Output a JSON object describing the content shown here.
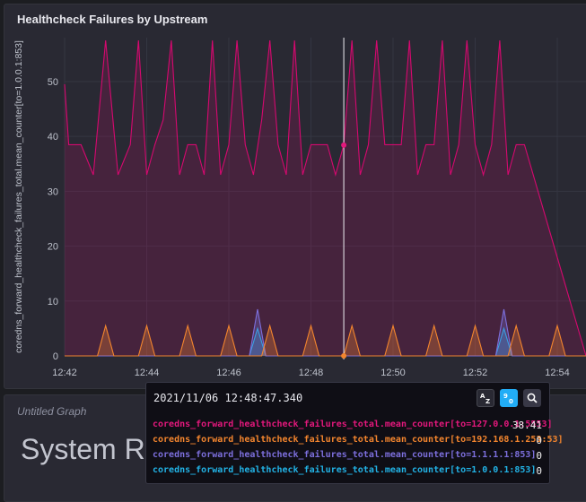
{
  "panel": {
    "title": "Healthcheck Failures by Upstream"
  },
  "chart_data": {
    "type": "area",
    "ylabel": "coredns_forward_healthcheck_failures_total.mean_counter[to=1.0.0.1:853]",
    "xlabel": "",
    "ylim": [
      0,
      58
    ],
    "yticks": [
      0,
      10,
      20,
      30,
      40,
      50
    ],
    "xlim": [
      0,
      12.7
    ],
    "xticks": [
      0,
      2,
      4,
      6,
      8,
      10,
      12
    ],
    "xtick_labels": [
      "12:42",
      "12:44",
      "12:46",
      "12:48",
      "12:50",
      "12:52",
      "12:54"
    ],
    "hover_x": 6.8,
    "series": [
      {
        "name": "coredns_forward_healthcheck_failures_total.mean_counter[to=127.0.0.1:5553]",
        "color": "#d6086f",
        "x": [
          0.0,
          0.1,
          0.4,
          0.7,
          1.0,
          1.3,
          1.6,
          1.8,
          2.0,
          2.2,
          2.4,
          2.6,
          2.8,
          3.0,
          3.2,
          3.4,
          3.6,
          3.8,
          4.0,
          4.2,
          4.4,
          4.6,
          4.8,
          5.0,
          5.2,
          5.4,
          5.6,
          5.8,
          6.0,
          6.2,
          6.4,
          6.6,
          6.8,
          7.0,
          7.2,
          7.4,
          7.6,
          7.8,
          8.0,
          8.2,
          8.4,
          8.6,
          8.8,
          9.0,
          9.2,
          9.4,
          9.6,
          9.8,
          10.0,
          10.2,
          10.4,
          10.6,
          10.8,
          11.0,
          11.2,
          12.7
        ],
        "y": [
          49.5,
          38.5,
          38.5,
          33,
          57.5,
          33,
          38.5,
          57.5,
          33,
          38.5,
          43,
          57.5,
          33,
          38.5,
          38.5,
          33,
          57.5,
          33,
          38.5,
          57.5,
          38.5,
          33,
          43,
          57.5,
          38.5,
          33,
          57.5,
          33,
          38.5,
          38.5,
          38.5,
          33,
          38.5,
          57.5,
          33,
          38.5,
          57.5,
          38.5,
          38.5,
          38.5,
          57.5,
          33,
          38.5,
          38.5,
          57.5,
          33,
          38.5,
          57.5,
          38.5,
          33,
          38.5,
          57.5,
          33,
          38.5,
          38.5,
          0
        ]
      },
      {
        "name": "coredns_forward_healthcheck_failures_total.mean_counter[to=192.168.1.253:53]",
        "color": "#f3852e",
        "spikes_x": [
          1.0,
          2.0,
          3.0,
          4.0,
          5.0,
          6.0,
          7.0,
          8.0,
          9.0,
          10.0,
          11.0,
          12.0
        ],
        "spike_height": 5.5
      },
      {
        "name": "coredns_forward_healthcheck_failures_total.mean_counter[to=1.1.1.1:853]",
        "color": "#7c6fdc",
        "spikes_x": [
          4.7,
          10.7
        ],
        "spike_height": 8.5
      },
      {
        "name": "coredns_forward_healthcheck_failures_total.mean_counter[to=1.0.0.1:853]",
        "color": "#22b3e6",
        "spikes_x": [
          4.7,
          10.7
        ],
        "spike_height": 5
      }
    ]
  },
  "panel2": {
    "title": "Untitled Graph",
    "big_text": "System Re"
  },
  "tooltip": {
    "timestamp": "2021/11/06 12:48:47.340",
    "sort_alpha_label": "AZ",
    "sort_num_label": "90",
    "search_icon": "search-icon",
    "rows": [
      {
        "name": "coredns_forward_healthcheck_failures_total.mean_counter[to=127.0.0.1:5553]",
        "value": "38.41",
        "color": "#e3187c"
      },
      {
        "name": "coredns_forward_healthcheck_failures_total.mean_counter[to=192.168.1.253:53]",
        "value": "0",
        "color": "#f3852e"
      },
      {
        "name": "coredns_forward_healthcheck_failures_total.mean_counter[to=1.1.1.1:853]",
        "value": "0",
        "color": "#7c6fdc"
      },
      {
        "name": "coredns_forward_healthcheck_failures_total.mean_counter[to=1.0.0.1:853]",
        "value": "0",
        "color": "#22b3e6"
      }
    ]
  }
}
